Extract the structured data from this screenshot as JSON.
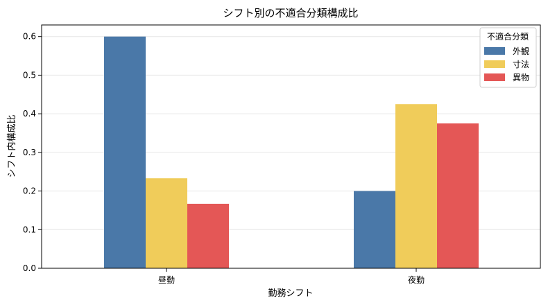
{
  "chart_data": {
    "type": "bar",
    "title": "シフト別の不適合分類構成比",
    "xlabel": "勤務シフト",
    "ylabel": "シフト内構成比",
    "categories": [
      "昼勤",
      "夜勤"
    ],
    "series": [
      {
        "name": "外観",
        "color": "#4a78a8",
        "values": [
          0.6,
          0.2
        ]
      },
      {
        "name": "寸法",
        "color": "#f0cc5a",
        "values": [
          0.233,
          0.425
        ]
      },
      {
        "name": "異物",
        "color": "#e45756",
        "values": [
          0.167,
          0.375
        ]
      }
    ],
    "ylim": [
      0,
      0.63
    ],
    "yticks": [
      0.0,
      0.1,
      0.2,
      0.3,
      0.4,
      0.5,
      0.6
    ],
    "ytick_labels": [
      "0.0",
      "0.1",
      "0.2",
      "0.3",
      "0.4",
      "0.5",
      "0.6"
    ],
    "grid": "horizontal",
    "legend": {
      "title": "不適合分類",
      "placement": "top-right"
    }
  }
}
